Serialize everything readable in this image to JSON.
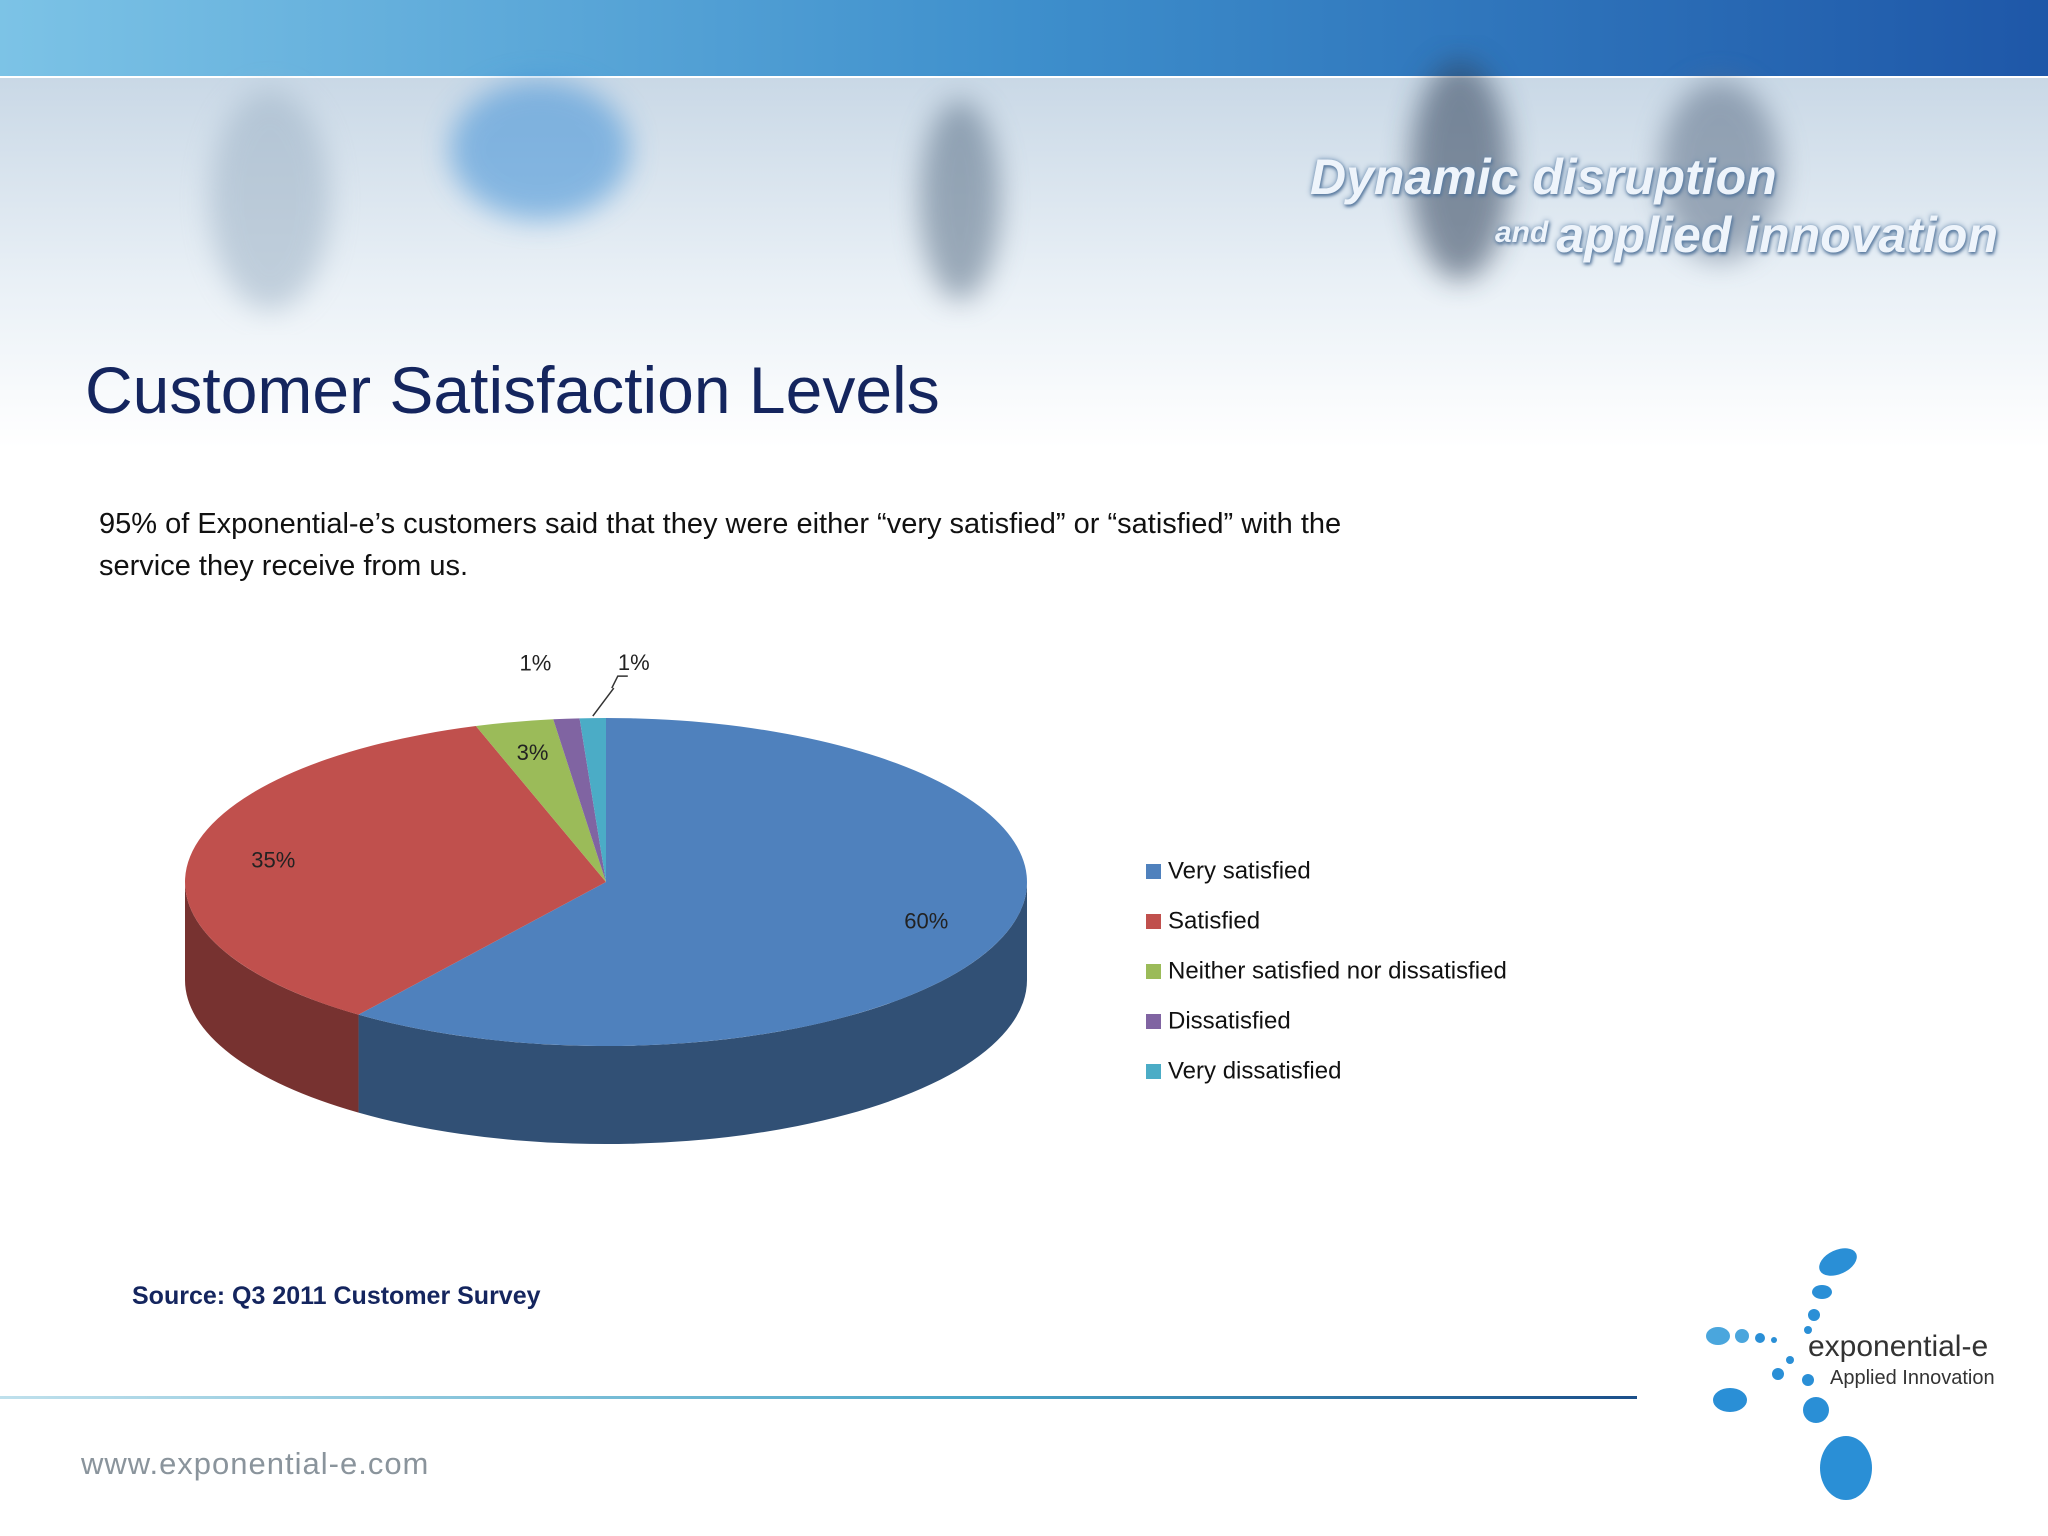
{
  "header": {
    "tagline_line1": "Dynamic disruption",
    "tagline_and": "and",
    "tagline_line2": "applied innovation"
  },
  "chart_data": {
    "type": "pie",
    "title": "Customer Satisfaction Levels",
    "subtitle": "95% of Exponential-e’s customers said that they were either “very satisfied” or “satisfied” with the service they receive from us.",
    "categories": [
      "Very satisfied",
      "Satisfied",
      "Neither satisfied nor dissatisfied",
      "Dissatisfied",
      "Very dissatisfied"
    ],
    "values": [
      60,
      35,
      3,
      1,
      1
    ],
    "value_labels": [
      "60%",
      "35%",
      "3%",
      "1%",
      "1%"
    ],
    "colors": [
      "#4f81bd",
      "#c0504d",
      "#9bbb59",
      "#8064a2",
      "#4bacc6"
    ],
    "legend": "right",
    "source": "Source: Q3 2011 Customer Survey"
  },
  "footer": {
    "url": "www.exponential-e.com",
    "logo_name": "exponential-e",
    "logo_tagline": "Applied Innovation"
  }
}
